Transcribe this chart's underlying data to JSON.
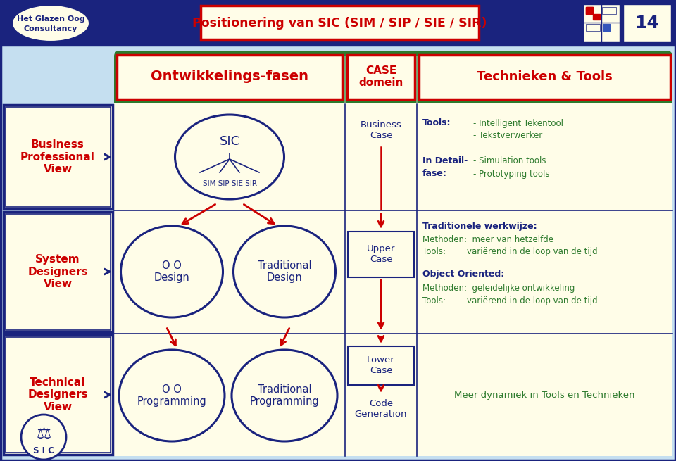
{
  "title": "Positionering van SIC (SIM / SIP / SIE / SIR)",
  "page_num": "14",
  "bg_color": "#c5dff0",
  "header_bg": "#1a237e",
  "dark_blue": "#1a237e",
  "green_header": "#2d7a2d",
  "yellow_bg": "#fffde8",
  "red": "#cc0000",
  "green_text": "#2d7a2d",
  "col_headers": [
    "Ontwikkelings-fasen",
    "CASE\ndomein",
    "Technieken & Tools"
  ],
  "sic_label2": "S I C"
}
